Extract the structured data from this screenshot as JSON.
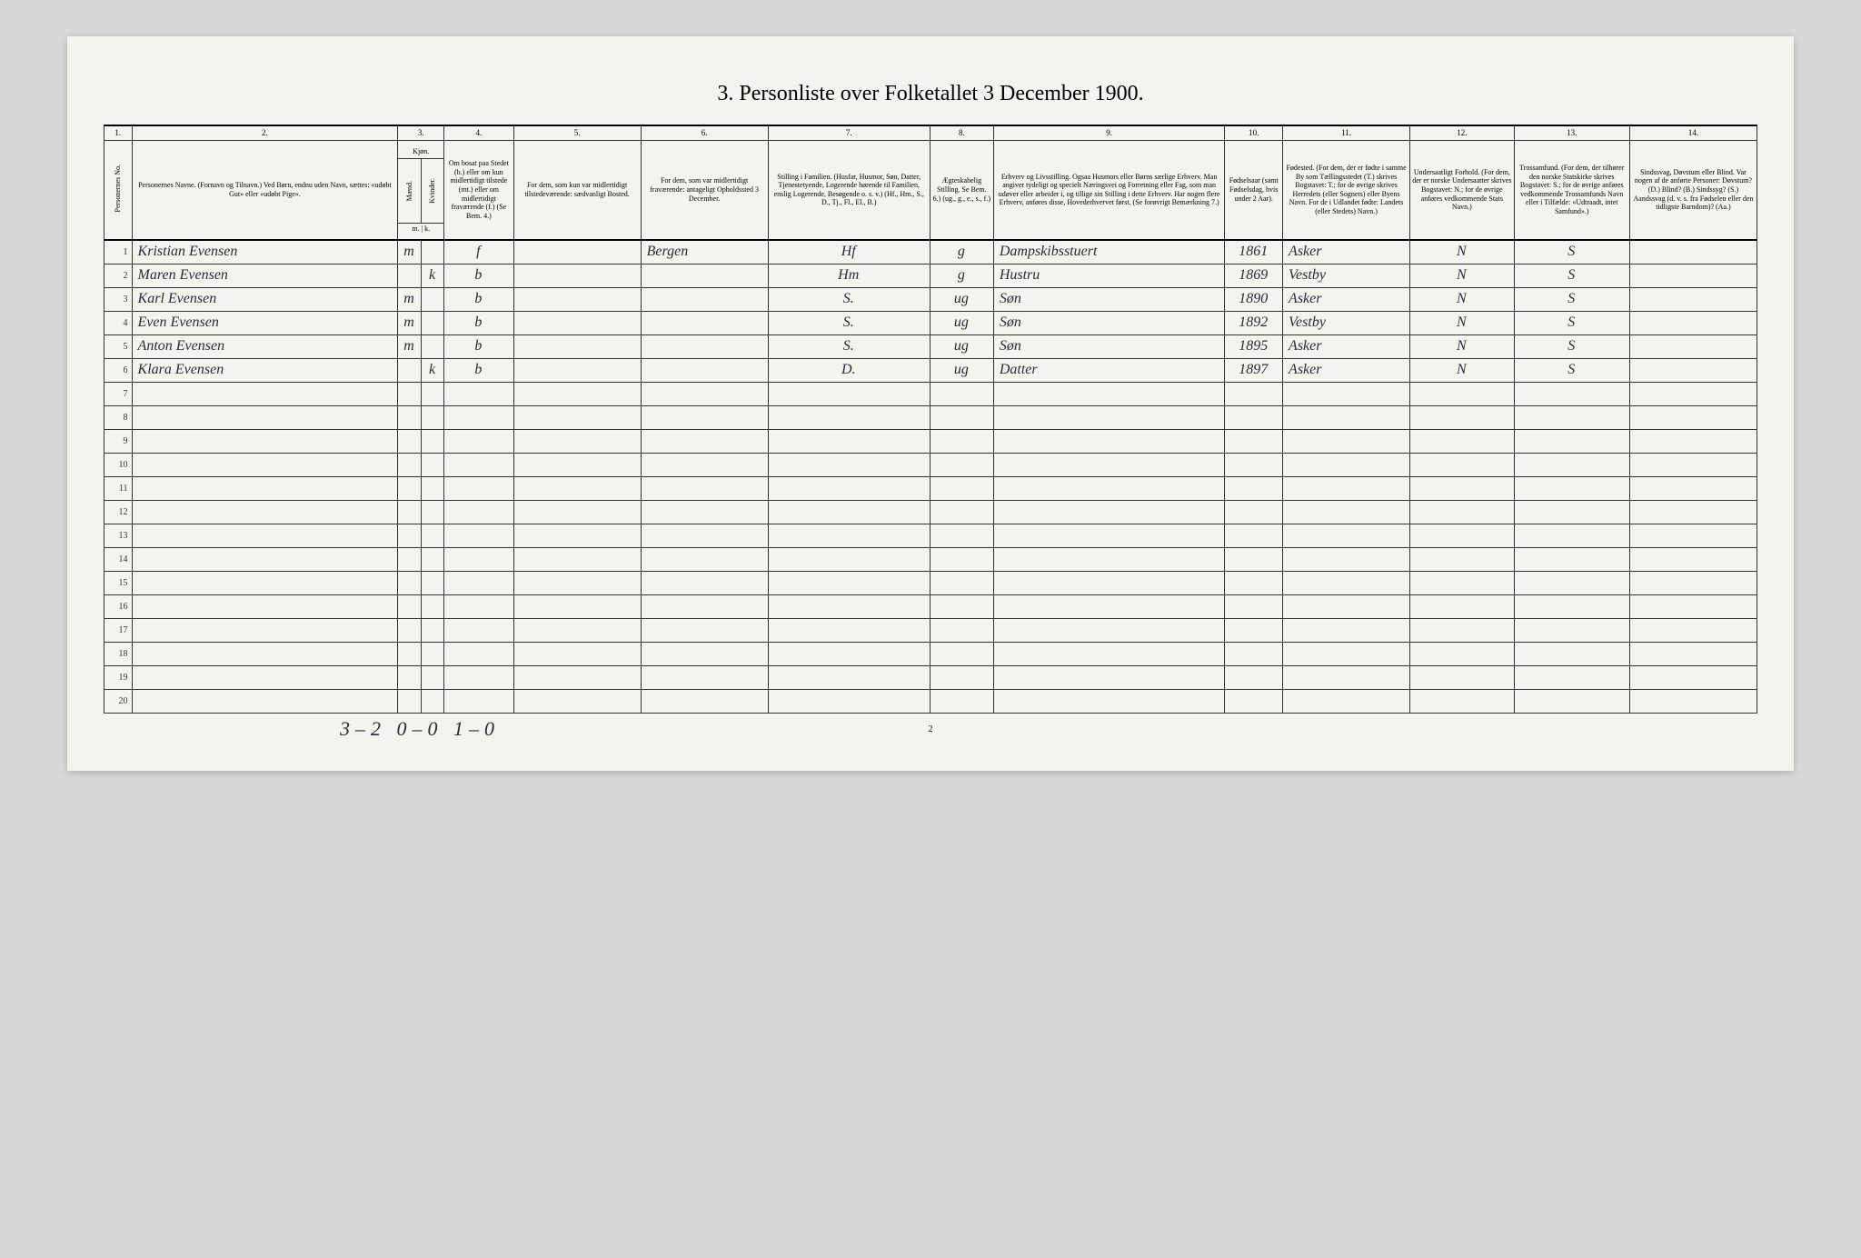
{
  "title": "3. Personliste over Folketallet 3 December 1900.",
  "colnums": [
    "1.",
    "2.",
    "3.",
    "4.",
    "5.",
    "6.",
    "7.",
    "8.",
    "9.",
    "10.",
    "11.",
    "12.",
    "13.",
    "14."
  ],
  "headers": {
    "c1": "Personernes No.",
    "c2": "Personernes Navne.\n(Fornavn og Tilnavn.)\nVed Børn, endnu uden Navn, sættes: «udøbt Gut» eller «udøbt Pige».",
    "c3": "Kjøn.",
    "c3a": "Mænd.",
    "c3b": "Kvinder.",
    "c3note": "m. | k.",
    "c4": "Om bosat paa Stedet (b.) eller om kun midlertidigt tilstede (mt.) eller om midlertidigt fraværende (f.)\n(Se Bem. 4.)",
    "c5": "For dem, som kun var midlertidigt tilstedeværende:\nsædvanligt Bosted.",
    "c6": "For dem, som var midlertidigt fraværende:\nantageligt Opholdssted 3 December.",
    "c7": "Stilling i Familien.\n(Husfar, Husmor, Søn, Datter, Tjenestetyende, Logerende hørende til Familien, enslig Logerende, Besøgende o. s. v.)\n(Hf., Hm., S., D., Tj., Fl., El., B.)",
    "c8": "Ægteskabelig Stilling.\nSe Bem. 6.)\n(ug., g., e., s., f.)",
    "c9": "Erhverv og Livsstilling.\nOgsaa Husmors eller Børns særlige Erhverv. Man angiver tydeligt og specielt Næringsvei og Forretning eller Fag, som man udøver eller arbeider i, og tillige sin Stilling i dette Erhverv. Har nogen flere Erhverv, anføres disse, Hovederhvervet først.\n(Se forøvrigt Bemærkning 7.)",
    "c10": "Fødselsaar\n(samt Fødselsdag, hvis under 2 Aar).",
    "c11": "Fødested.\n(For dem, der er fødte i samme By som Tællingsstedet (T.) skrives Bogstavet: T.; for de øvrige skrives Herredets (eller Sognets) eller Byens Navn. For de i Udlandet fødte: Landets (eller Stedets) Navn.)",
    "c12": "Undersaatligt Forhold.\n(For dem, der er norske Undersaatter skrives Bogstavet: N.; for de øvrige anføres vedkommende Stats Navn.)",
    "c13": "Trossamfund.\n(For dem, der tilhører den norske Statskirke skrives Bogstavet: S.; for de øvrige anføres vedkommende Trossamfunds Navn eller i Tilfælde: «Udtraadt, intet Samfund».)",
    "c14": "Sindssvag, Døvstum eller Blind.\nVar nogen af de anførte Personer: Døvstum? (D.) Blind? (B.) Sindssyg? (S.) Aandssvag (d. v. s. fra Fødselen eller den tidligste Barndom)? (Aa.)"
  },
  "rows": [
    {
      "n": "1",
      "name": "Kristian Evensen",
      "sex": "m",
      "res": "f",
      "c5": "",
      "c6": "Bergen",
      "fam": "Hf",
      "mar": "g",
      "occ": "Dampskibsstuert",
      "year": "1861",
      "birthplace": "Asker",
      "nat": "N",
      "rel": "S",
      "c14": ""
    },
    {
      "n": "2",
      "name": "Maren Evensen",
      "sex": "k",
      "res": "b",
      "c5": "",
      "c6": "",
      "fam": "Hm",
      "mar": "g",
      "occ": "Hustru",
      "year": "1869",
      "birthplace": "Vestby",
      "nat": "N",
      "rel": "S",
      "c14": ""
    },
    {
      "n": "3",
      "name": "Karl Evensen",
      "sex": "m",
      "res": "b",
      "c5": "",
      "c6": "",
      "fam": "S.",
      "mar": "ug",
      "occ": "Søn",
      "year": "1890",
      "birthplace": "Asker",
      "nat": "N",
      "rel": "S",
      "c14": ""
    },
    {
      "n": "4",
      "name": "Even Evensen",
      "sex": "m",
      "res": "b",
      "c5": "",
      "c6": "",
      "fam": "S.",
      "mar": "ug",
      "occ": "Søn",
      "year": "1892",
      "birthplace": "Vestby",
      "nat": "N",
      "rel": "S",
      "c14": ""
    },
    {
      "n": "5",
      "name": "Anton Evensen",
      "sex": "m",
      "res": "b",
      "c5": "",
      "c6": "",
      "fam": "S.",
      "mar": "ug",
      "occ": "Søn",
      "year": "1895",
      "birthplace": "Asker",
      "nat": "N",
      "rel": "S",
      "c14": ""
    },
    {
      "n": "6",
      "name": "Klara Evensen",
      "sex": "k",
      "res": "b",
      "c5": "",
      "c6": "",
      "fam": "D.",
      "mar": "ug",
      "occ": "Datter",
      "year": "1897",
      "birthplace": "Asker",
      "nat": "N",
      "rel": "S",
      "c14": ""
    }
  ],
  "blank_rows": 14,
  "footer_tally": "3–2   0–0   1–0",
  "page_number": "2",
  "colors": {
    "paper": "#f5f3ee",
    "bg": "#d8d8d8",
    "ink": "#2a2a3a",
    "rule": "#333333"
  }
}
